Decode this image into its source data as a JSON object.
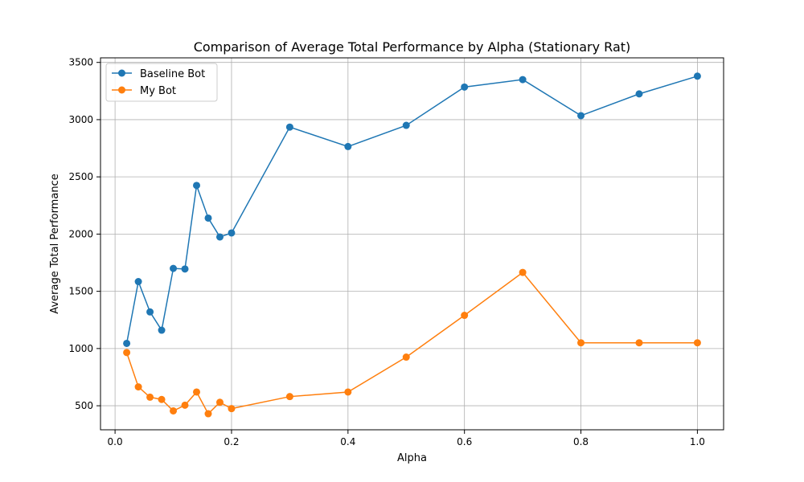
{
  "chart_data": {
    "type": "line",
    "title": "Comparison of Average Total Performance by Alpha (Stationary Rat)",
    "xlabel": "Alpha",
    "ylabel": "Average Total Performance",
    "xlim": [
      -0.025,
      1.045
    ],
    "ylim": [
      290,
      3540
    ],
    "xticks": [
      0.0,
      0.2,
      0.4,
      0.6,
      0.8,
      1.0
    ],
    "xtick_labels": [
      "0.0",
      "0.2",
      "0.4",
      "0.6",
      "0.8",
      "1.0"
    ],
    "yticks": [
      500,
      1000,
      1500,
      2000,
      2500,
      3000,
      3500
    ],
    "ytick_labels": [
      "500",
      "1000",
      "1500",
      "2000",
      "2500",
      "3000",
      "3500"
    ],
    "grid": true,
    "legend_position": "top-left",
    "x": [
      0.02,
      0.04,
      0.06,
      0.08,
      0.1,
      0.12,
      0.14,
      0.16,
      0.18,
      0.2,
      0.3,
      0.4,
      0.5,
      0.6,
      0.7,
      0.8,
      0.9,
      1.0
    ],
    "series": [
      {
        "name": "Baseline Bot",
        "color": "#1f77b4",
        "values": [
          1045,
          1585,
          1320,
          1160,
          1700,
          1695,
          2425,
          2140,
          1975,
          2010,
          2935,
          2765,
          2950,
          3285,
          3350,
          3035,
          3225,
          3380
        ]
      },
      {
        "name": "My Bot",
        "color": "#ff7f0e",
        "values": [
          965,
          665,
          575,
          555,
          455,
          505,
          620,
          430,
          530,
          475,
          580,
          620,
          925,
          1290,
          1665,
          1050,
          1050,
          1050
        ]
      }
    ]
  }
}
